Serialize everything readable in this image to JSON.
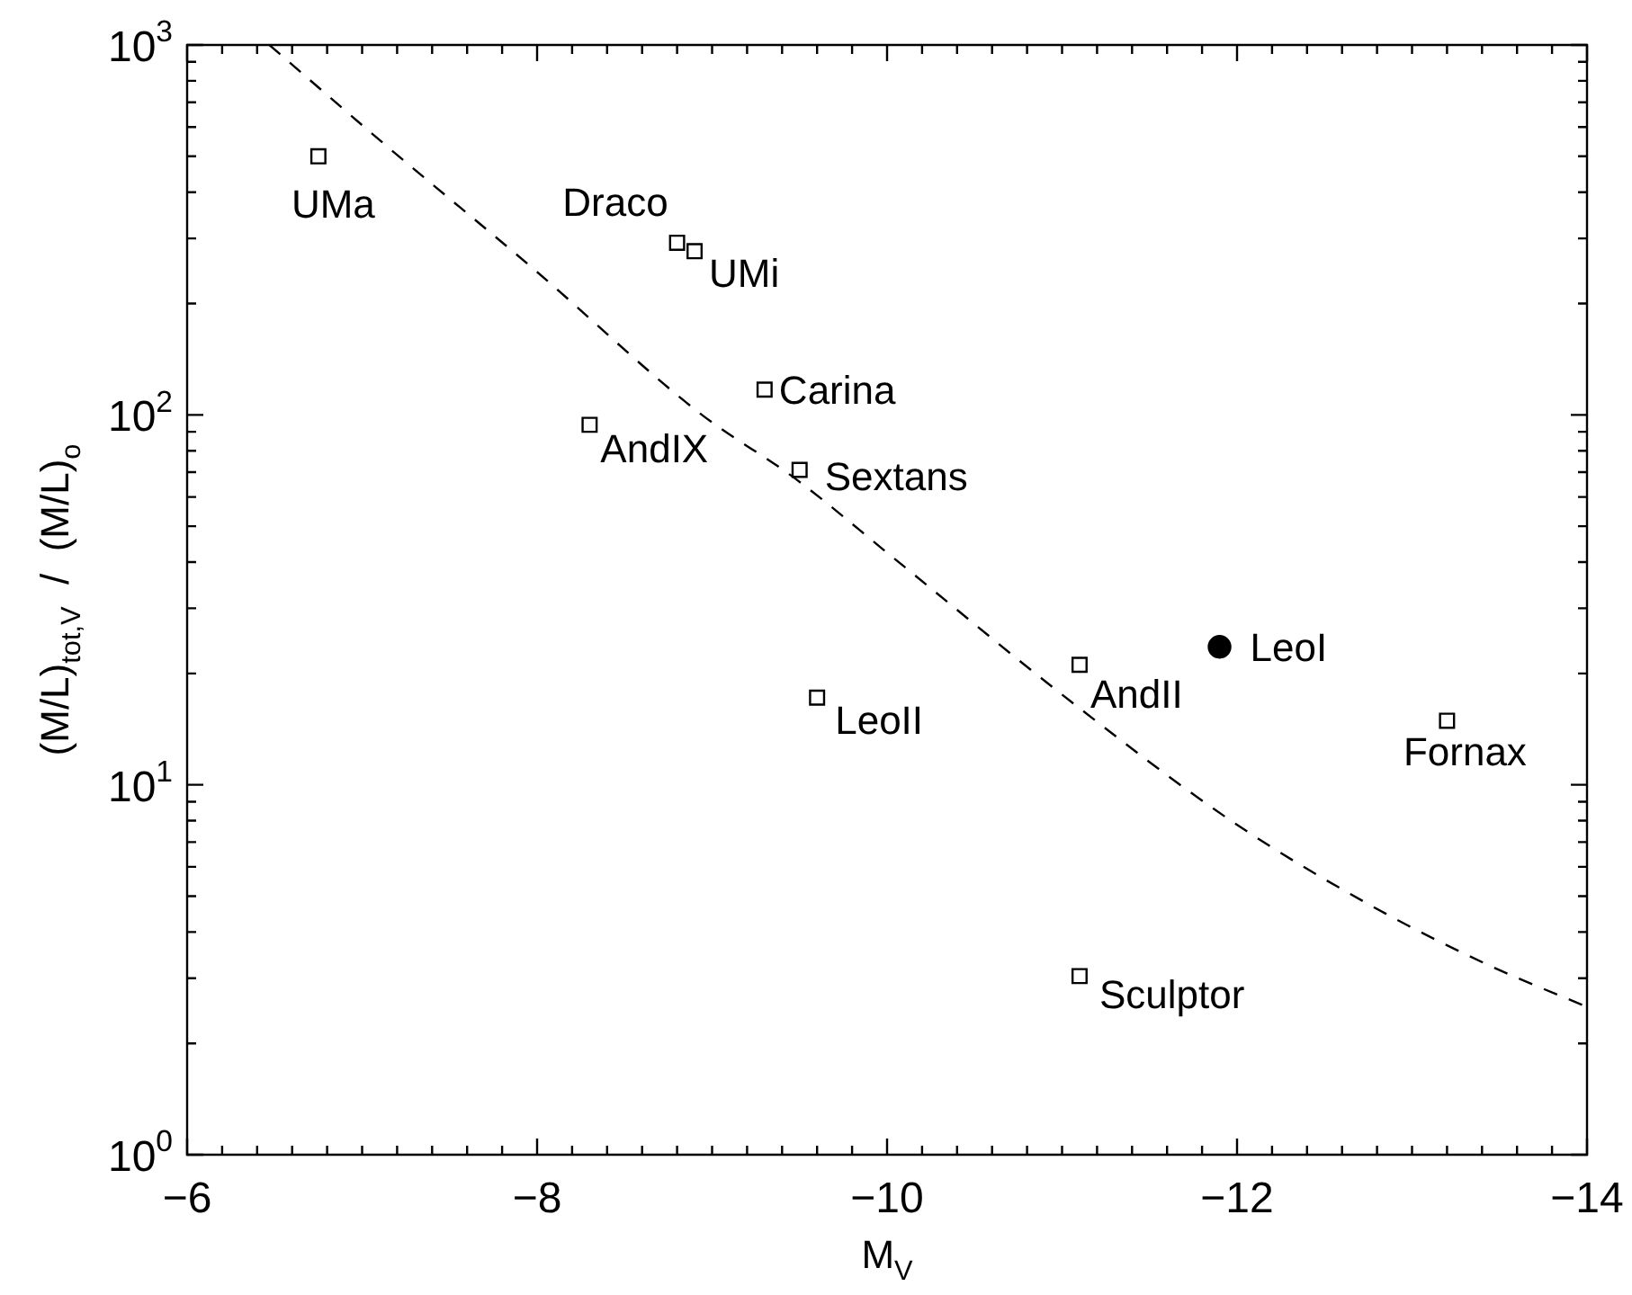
{
  "chart_data": {
    "type": "scatter",
    "xlabel": "M$_{V}$",
    "ylabel": "(M/L)$_{tot,V}$  /  (M/L)$_{o}$",
    "log": "y",
    "grid": false,
    "legend": false,
    "xlim": [
      -6,
      -14
    ],
    "ylim": [
      1,
      1000
    ],
    "xticks": [
      {
        "value": -6,
        "label": "−6"
      },
      {
        "value": -6.2,
        "label": null
      },
      {
        "value": -6.4,
        "label": null
      },
      {
        "value": -6.6,
        "label": null
      },
      {
        "value": -6.8,
        "label": null
      },
      {
        "value": -7,
        "label": null
      },
      {
        "value": -7.2,
        "label": null
      },
      {
        "value": -7.4,
        "label": null
      },
      {
        "value": -7.6,
        "label": null
      },
      {
        "value": -7.8,
        "label": null
      },
      {
        "value": -8,
        "label": "−8"
      },
      {
        "value": -8.2,
        "label": null
      },
      {
        "value": -8.4,
        "label": null
      },
      {
        "value": -8.6,
        "label": null
      },
      {
        "value": -8.8,
        "label": null
      },
      {
        "value": -9,
        "label": null
      },
      {
        "value": -9.2,
        "label": null
      },
      {
        "value": -9.4,
        "label": null
      },
      {
        "value": -9.6,
        "label": null
      },
      {
        "value": -9.8,
        "label": null
      },
      {
        "value": -10,
        "label": "−10"
      },
      {
        "value": -10.2,
        "label": null
      },
      {
        "value": -10.4,
        "label": null
      },
      {
        "value": -10.6,
        "label": null
      },
      {
        "value": -10.8,
        "label": null
      },
      {
        "value": -11,
        "label": null
      },
      {
        "value": -11.2,
        "label": null
      },
      {
        "value": -11.4,
        "label": null
      },
      {
        "value": -11.6,
        "label": null
      },
      {
        "value": -11.8,
        "label": null
      },
      {
        "value": -12,
        "label": "−12"
      },
      {
        "value": -12.2,
        "label": null
      },
      {
        "value": -12.4,
        "label": null
      },
      {
        "value": -12.6,
        "label": null
      },
      {
        "value": -12.8,
        "label": null
      },
      {
        "value": -13,
        "label": null
      },
      {
        "value": -13.2,
        "label": null
      },
      {
        "value": -13.4,
        "label": null
      },
      {
        "value": -13.6,
        "label": null
      },
      {
        "value": -13.8,
        "label": null
      },
      {
        "value": -14,
        "label": "−14"
      }
    ],
    "yticks": [
      {
        "value": 1,
        "label": "10$^{0}$"
      },
      {
        "value": 2,
        "label": null
      },
      {
        "value": 3,
        "label": null
      },
      {
        "value": 4,
        "label": null
      },
      {
        "value": 5,
        "label": null
      },
      {
        "value": 6,
        "label": null
      },
      {
        "value": 7,
        "label": null
      },
      {
        "value": 8,
        "label": null
      },
      {
        "value": 9,
        "label": null
      },
      {
        "value": 10,
        "label": "10$^{1}$"
      },
      {
        "value": 20,
        "label": null
      },
      {
        "value": 30,
        "label": null
      },
      {
        "value": 40,
        "label": null
      },
      {
        "value": 50,
        "label": null
      },
      {
        "value": 60,
        "label": null
      },
      {
        "value": 70,
        "label": null
      },
      {
        "value": 80,
        "label": null
      },
      {
        "value": 90,
        "label": null
      },
      {
        "value": 100,
        "label": "10$^{2}$"
      },
      {
        "value": 200,
        "label": null
      },
      {
        "value": 300,
        "label": null
      },
      {
        "value": 400,
        "label": null
      },
      {
        "value": 500,
        "label": null
      },
      {
        "value": 600,
        "label": null
      },
      {
        "value": 700,
        "label": null
      },
      {
        "value": 800,
        "label": null
      },
      {
        "value": 900,
        "label": null
      },
      {
        "value": 1000,
        "label": "10$^{3}$"
      }
    ],
    "series": [
      {
        "marker": "square",
        "color": "#000000",
        "x": [
          -6.75,
          -8.8,
          -8.9,
          -9.3,
          -8.3,
          -9.5,
          -9.6,
          -11.1,
          -13.2,
          -11.1
        ],
        "values": [
          500,
          292,
          277,
          117,
          94,
          71,
          17.2,
          21.1,
          14.9,
          3.04
        ]
      },
      {
        "marker": "circle",
        "color": "#000000",
        "x": [
          -11.9
        ],
        "values": [
          23.6
        ]
      },
      {
        "type": "line",
        "marker": "none",
        "line_style": "dashed",
        "color": "#000000",
        "x": [
          -6.47,
          -7.12,
          -7.98,
          -8.93,
          -9.48,
          -10.03,
          -11.05,
          -11.97,
          -12.76,
          -13.44,
          -14
        ],
        "values": [
          1000,
          543,
          248,
          101,
          67,
          41.3,
          16.8,
          7.97,
          4.73,
          3.25,
          2.51
        ]
      }
    ],
    "annotations": [
      {
        "text": "UMa",
        "x": -6.75,
        "y": 500
      },
      {
        "text": "Draco",
        "x": -8.8,
        "y": 292
      },
      {
        "text": "UMi",
        "x": -8.9,
        "y": 277
      },
      {
        "text": "Carina",
        "x": -9.3,
        "y": 117
      },
      {
        "text": "AndIX",
        "x": -8.3,
        "y": 94
      },
      {
        "text": "Sextans",
        "x": -9.5,
        "y": 71
      },
      {
        "text": "LeoII",
        "x": -9.6,
        "y": 17.2
      },
      {
        "text": "AndII",
        "x": -11.1,
        "y": 21.1
      },
      {
        "text": "LeoI",
        "x": -11.9,
        "y": 23.6
      },
      {
        "text": "Fornax",
        "x": -13.2,
        "y": 14.9
      },
      {
        "text": "Sculptor",
        "x": -11.1,
        "y": 3.04
      }
    ]
  }
}
